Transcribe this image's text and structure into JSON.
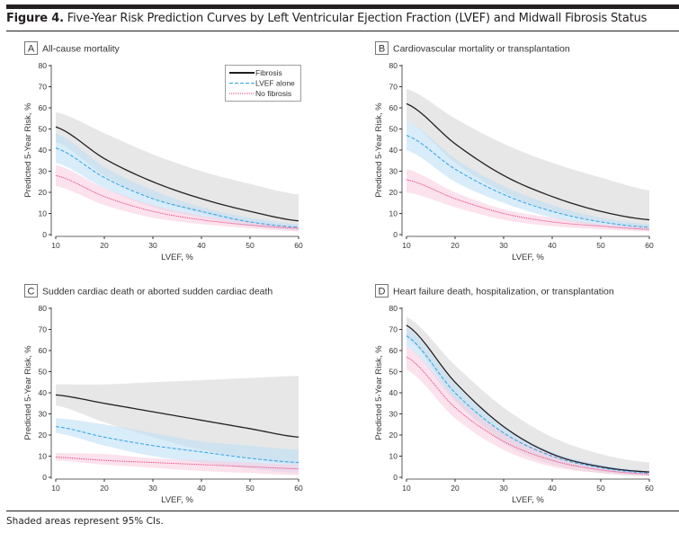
{
  "figure": {
    "label": "Figure 4.",
    "title": "Five-Year Risk Prediction Curves by Left Ventricular Ejection Fraction (LVEF) and Midwall Fibrosis Status",
    "footnote": "Shaded areas represent 95% CIs."
  },
  "colors": {
    "fibrosis": "#231f20",
    "fibrosis_ci": "#e3e3e3",
    "lvef": "#2ea3e6",
    "lvef_ci": "#bfe0f7",
    "nofib": "#e8347a",
    "nofib_ci": "#f8cfe0"
  },
  "legend": [
    "Fibrosis",
    "LVEF alone",
    "No fibrosis"
  ],
  "chart_data": [
    {
      "type": "line",
      "panel": "A",
      "title": "All-cause mortality",
      "xlabel": "LVEF, %",
      "ylabel": "Predicted 5-Year Risk, %",
      "xlim": [
        10,
        60
      ],
      "ylim": [
        0,
        80
      ],
      "x": [
        10,
        20,
        30,
        40,
        50,
        60
      ],
      "xticks": [
        10,
        20,
        30,
        40,
        50,
        60
      ],
      "yticks": [
        0,
        10,
        20,
        30,
        40,
        50,
        60,
        70,
        80
      ],
      "legend_position": "top-right",
      "series": [
        {
          "name": "Fibrosis",
          "values": [
            51,
            36,
            25,
            17,
            11,
            6.5
          ],
          "ci_upper": [
            58,
            48,
            38,
            30,
            24,
            19
          ],
          "ci_lower": [
            44,
            28,
            17,
            10,
            5,
            2
          ]
        },
        {
          "name": "LVEF alone",
          "values": [
            41,
            27,
            17,
            11,
            6,
            3.5
          ],
          "ci_upper": [
            48,
            32,
            21,
            13,
            8,
            5
          ],
          "ci_lower": [
            34,
            22,
            13,
            8,
            4,
            2
          ]
        },
        {
          "name": "No fibrosis",
          "values": [
            28,
            18,
            11,
            7,
            4.5,
            3
          ],
          "ci_upper": [
            33,
            22,
            14,
            9,
            6,
            4
          ],
          "ci_lower": [
            23,
            14,
            8,
            5,
            3,
            1.5
          ]
        }
      ]
    },
    {
      "type": "line",
      "panel": "B",
      "title": "Cardiovascular mortality or transplantation",
      "xlabel": "LVEF, %",
      "ylabel": "Predicted 5-Year Risk, %",
      "xlim": [
        10,
        60
      ],
      "ylim": [
        0,
        80
      ],
      "x": [
        10,
        20,
        30,
        40,
        50,
        60
      ],
      "xticks": [
        10,
        20,
        30,
        40,
        50,
        60
      ],
      "yticks": [
        0,
        10,
        20,
        30,
        40,
        50,
        60,
        70,
        80
      ],
      "series": [
        {
          "name": "Fibrosis",
          "values": [
            62,
            43,
            28,
            18,
            11,
            7
          ],
          "ci_upper": [
            69,
            55,
            43,
            34,
            27,
            21
          ],
          "ci_lower": [
            54,
            34,
            20,
            11,
            6,
            2
          ]
        },
        {
          "name": "LVEF alone",
          "values": [
            47,
            31,
            19,
            11,
            6,
            3.5
          ],
          "ci_upper": [
            54,
            36,
            23,
            14,
            8,
            5
          ],
          "ci_lower": [
            40,
            25,
            15,
            8,
            4,
            2
          ]
        },
        {
          "name": "No fibrosis",
          "values": [
            26,
            17,
            10,
            6,
            4,
            2.5
          ],
          "ci_upper": [
            31,
            20,
            12,
            8,
            5,
            3.5
          ],
          "ci_lower": [
            20,
            13,
            7,
            4,
            2.5,
            1.5
          ]
        }
      ]
    },
    {
      "type": "line",
      "panel": "C",
      "title": "Sudden cardiac death or aborted sudden cardiac death",
      "xlabel": "LVEF, %",
      "ylabel": "Predicted 5-Year Risk, %",
      "xlim": [
        10,
        60
      ],
      "ylim": [
        0,
        80
      ],
      "x": [
        10,
        20,
        30,
        40,
        50,
        60
      ],
      "xticks": [
        10,
        20,
        30,
        40,
        50,
        60
      ],
      "yticks": [
        0,
        10,
        20,
        30,
        40,
        50,
        60,
        70,
        80
      ],
      "series": [
        {
          "name": "Fibrosis",
          "values": [
            39,
            35,
            31,
            27,
            23,
            19
          ],
          "ci_upper": [
            44,
            44,
            45,
            46,
            47,
            48
          ],
          "ci_lower": [
            34,
            26,
            19,
            13,
            9,
            6
          ]
        },
        {
          "name": "LVEF alone",
          "values": [
            24,
            19,
            15,
            12,
            9,
            7
          ],
          "ci_upper": [
            28,
            25,
            21,
            17,
            15,
            13
          ],
          "ci_lower": [
            21,
            15,
            10,
            7,
            4,
            2
          ]
        },
        {
          "name": "No fibrosis",
          "values": [
            9.5,
            8,
            7,
            6,
            5,
            4
          ],
          "ci_upper": [
            11.5,
            11,
            9,
            8,
            7,
            6
          ],
          "ci_lower": [
            8,
            6,
            4.5,
            3,
            2,
            1
          ]
        }
      ]
    },
    {
      "type": "line",
      "panel": "D",
      "title": "Heart failure death, hospitalization, or transplantation",
      "xlabel": "LVEF, %",
      "ylabel": "Predicted 5-Year Risk, %",
      "xlim": [
        10,
        60
      ],
      "ylim": [
        0,
        80
      ],
      "x": [
        10,
        20,
        30,
        40,
        50,
        60
      ],
      "xticks": [
        10,
        20,
        30,
        40,
        50,
        60
      ],
      "yticks": [
        0,
        10,
        20,
        30,
        40,
        50,
        60,
        70,
        80
      ],
      "series": [
        {
          "name": "Fibrosis",
          "values": [
            72,
            45,
            24,
            11,
            5,
            2.5
          ],
          "ci_upper": [
            76,
            53,
            33,
            19,
            11,
            7
          ],
          "ci_lower": [
            66,
            37,
            16,
            6,
            2,
            0.5
          ]
        },
        {
          "name": "LVEF alone",
          "values": [
            67,
            40,
            21,
            10,
            4.5,
            2
          ],
          "ci_upper": [
            71,
            44,
            24,
            12,
            6,
            3
          ],
          "ci_lower": [
            62,
            36,
            18,
            8,
            3,
            1
          ]
        },
        {
          "name": "No fibrosis",
          "values": [
            57,
            33,
            17,
            8,
            3.5,
            1.5
          ],
          "ci_upper": [
            62,
            38,
            21,
            11,
            5,
            2.5
          ],
          "ci_lower": [
            51,
            28,
            13,
            5,
            2,
            0.5
          ]
        }
      ]
    }
  ]
}
